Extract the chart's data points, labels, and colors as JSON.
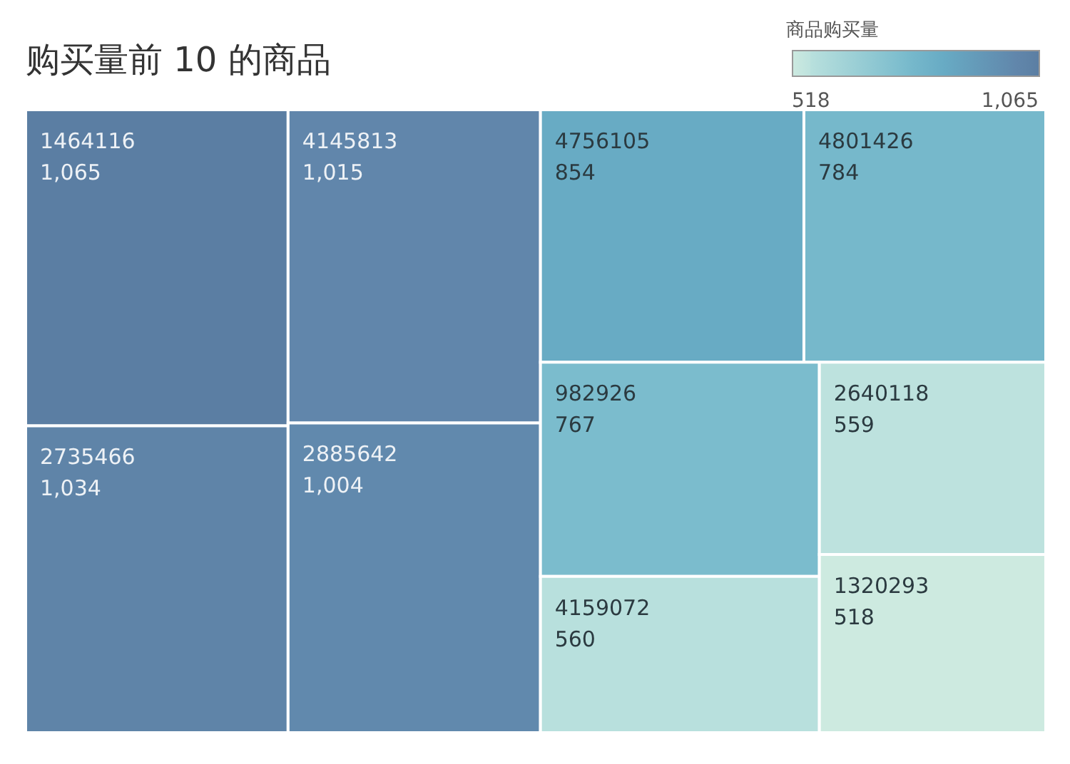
{
  "chart_data": {
    "type": "other",
    "title": "购买量前 10 的商品",
    "clabel": "商品购买量",
    "categories": [
      "1464116",
      "2735466",
      "4145813",
      "2885642",
      "4756105",
      "4801426",
      "982926",
      "4159072",
      "2640118",
      "1320293"
    ],
    "values": [
      1065,
      1034,
      1015,
      1004,
      854,
      784,
      767,
      560,
      559,
      518
    ],
    "value_labels": [
      "1,065",
      "1,034",
      "1,015",
      "1,004",
      "854",
      "784",
      "767",
      "560",
      "559",
      "518"
    ],
    "colors": [
      "#5b7ea3",
      "#5f84a8",
      "#6186ab",
      "#6189ad",
      "#68abc4",
      "#76b8cb",
      "#7bbccd",
      "#b8e0dd",
      "#bde2de",
      "#cdeae0"
    ],
    "annotations": [
      "518",
      "1,065"
    ]
  }
}
